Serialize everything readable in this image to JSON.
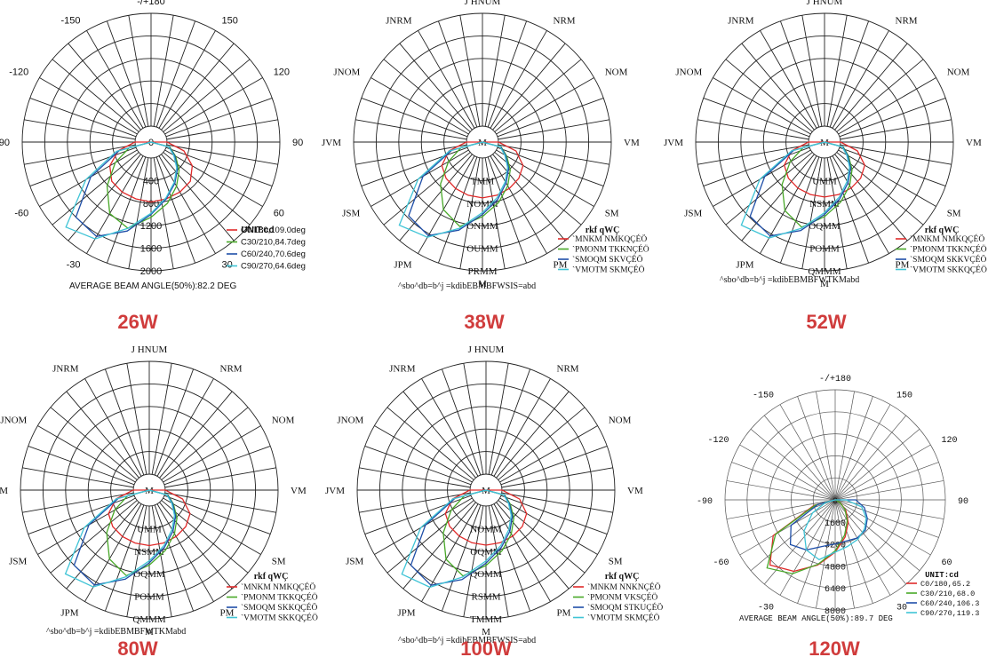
{
  "page": {
    "background": "#ffffff",
    "caption_color": "#d03c3c"
  },
  "chart_data": [
    {
      "id": "p26",
      "type": "polar",
      "caption": "26W",
      "font": "sans",
      "unit_label": "UNIT:cd",
      "footer": "AVERAGE BEAM ANGLE(50%):82.2 DEG",
      "angle_labels": [
        "-/+180",
        "150",
        "120",
        "90",
        "60",
        "30",
        "",
        "-30",
        "-60",
        "-90",
        "-120",
        "-150"
      ],
      "radial_labels": [
        "0",
        "400",
        "800",
        "1200",
        "1600",
        "2000"
      ],
      "rmax": 2000,
      "series": [
        {
          "name": "C0/180,109.0deg",
          "color": "#e02a2a",
          "values": [
            0,
            0,
            0,
            0,
            0,
            0,
            3,
            320,
            560,
            700,
            740,
            760,
            780,
            760,
            740,
            700,
            560,
            320,
            3,
            0,
            0,
            0,
            0,
            0,
            0
          ]
        },
        {
          "name": "C30/210,84.7deg",
          "color": "#48a828",
          "values": [
            0,
            0,
            0,
            0,
            0,
            0,
            0,
            60,
            220,
            420,
            620,
            840,
            1050,
            1300,
            1180,
            820,
            450,
            120,
            0,
            0,
            0,
            0,
            0,
            0,
            0
          ]
        },
        {
          "name": "C60/240,70.6deg",
          "color": "#1f4fa8",
          "values": [
            0,
            0,
            0,
            0,
            0,
            0,
            0,
            50,
            200,
            380,
            560,
            760,
            1000,
            1350,
            1650,
            1600,
            950,
            300,
            0,
            0,
            0,
            0,
            0,
            0,
            0
          ]
        },
        {
          "name": "C90/270,64.6deg",
          "color": "#3fc4d6",
          "values": [
            0,
            0,
            0,
            0,
            0,
            0,
            0,
            40,
            180,
            360,
            540,
            740,
            980,
            1300,
            1700,
            1850,
            1050,
            350,
            0,
            0,
            0,
            0,
            0,
            0,
            0
          ]
        }
      ]
    },
    {
      "id": "p38",
      "type": "polar",
      "caption": "38W",
      "font": "serif",
      "unit_label": "rkf qWÇ",
      "footer": "^sbo^db=b^j  =kdibEBMBFWSIS=abd",
      "angle_labels": [
        "J HNUM",
        "NRM",
        "NOM",
        "VM",
        "SM",
        "PM",
        "M",
        "JPM",
        "JSM",
        "JVM",
        "JNOM",
        "JNRM"
      ],
      "radial_labels": [
        "M",
        "TMM",
        "NOMM",
        "ONMM",
        "OUMM",
        "PRMM"
      ],
      "rmax": 3000,
      "series": [
        {
          "name": "`MNKM NMKQÇÉÖ",
          "color": "#e02a2a",
          "values": [
            0,
            0,
            0,
            0,
            0,
            0,
            5,
            500,
            820,
            940,
            1000,
            1040,
            1060,
            1040,
            1000,
            940,
            820,
            500,
            5,
            0,
            0,
            0,
            0,
            0,
            0
          ]
        },
        {
          "name": "`PMONM TKKNÇÉÖ",
          "color": "#48a828",
          "values": [
            0,
            0,
            0,
            0,
            0,
            0,
            0,
            90,
            320,
            620,
            920,
            1240,
            1560,
            1900,
            1650,
            1150,
            620,
            170,
            0,
            0,
            0,
            0,
            0,
            0,
            0
          ]
        },
        {
          "name": "`SMOQM SKVÇÉÖ",
          "color": "#1f4fa8",
          "values": [
            0,
            0,
            0,
            0,
            0,
            0,
            0,
            80,
            290,
            560,
            830,
            1150,
            1500,
            2000,
            2450,
            2350,
            1400,
            420,
            0,
            0,
            0,
            0,
            0,
            0,
            0
          ]
        },
        {
          "name": "`VMOTM SKMÇÉÖ",
          "color": "#3fc4d6",
          "values": [
            0,
            0,
            0,
            0,
            0,
            0,
            0,
            60,
            260,
            520,
            790,
            1100,
            1450,
            1950,
            2500,
            2700,
            1550,
            480,
            0,
            0,
            0,
            0,
            0,
            0,
            0
          ]
        }
      ]
    },
    {
      "id": "p52",
      "type": "polar",
      "caption": "52W",
      "font": "serif",
      "unit_label": "rkf qWÇ",
      "footer": "^sbo^db=b^j  =kdibEBMBFWTKMabd",
      "angle_labels": [
        "J HNUM",
        "NRM",
        "NOM",
        "VM",
        "SM",
        "PM",
        "M",
        "JPM",
        "JSM",
        "JVM",
        "JNOM",
        "JNRM"
      ],
      "radial_labels": [
        "M",
        "UMM",
        "NSMM",
        "OQMM",
        "POMM",
        "QMMM"
      ],
      "rmax": 5000,
      "series": [
        {
          "name": "`MNKM NMKQÇÉÖ",
          "color": "#e02a2a",
          "values": [
            0,
            0,
            0,
            0,
            0,
            0,
            8,
            800,
            1350,
            1560,
            1650,
            1700,
            1730,
            1700,
            1650,
            1560,
            1350,
            800,
            8,
            0,
            0,
            0,
            0,
            0,
            0
          ]
        },
        {
          "name": "`PMONM TKKNÇÉÖ",
          "color": "#48a828",
          "values": [
            0,
            0,
            0,
            0,
            0,
            0,
            0,
            150,
            520,
            1020,
            1520,
            2050,
            2600,
            3200,
            2800,
            1950,
            1050,
            280,
            0,
            0,
            0,
            0,
            0,
            0,
            0
          ]
        },
        {
          "name": "`SMOQM SKKVÇÉÖ",
          "color": "#1f4fa8",
          "values": [
            0,
            0,
            0,
            0,
            0,
            0,
            0,
            130,
            480,
            930,
            1380,
            1900,
            2500,
            3350,
            4100,
            3950,
            2350,
            700,
            0,
            0,
            0,
            0,
            0,
            0,
            0
          ]
        },
        {
          "name": "`VMOTM SKKQÇÉÖ",
          "color": "#3fc4d6",
          "values": [
            0,
            0,
            0,
            0,
            0,
            0,
            0,
            100,
            430,
            860,
            1300,
            1820,
            2420,
            3250,
            4200,
            4500,
            2600,
            800,
            0,
            0,
            0,
            0,
            0,
            0,
            0
          ]
        }
      ]
    },
    {
      "id": "p80",
      "type": "polar",
      "caption": "80W",
      "font": "serif",
      "unit_label": "rkf qWÇ",
      "footer": "^sbo^db=b^j  =kdibEBMBFWTKMabd",
      "angle_labels": [
        "J HNUM",
        "NRM",
        "NOM",
        "VM",
        "SM",
        "PM",
        "M",
        "JPM",
        "JSM",
        "JVM",
        "JNOM",
        "JNRM"
      ],
      "radial_labels": [
        "M",
        "UMM",
        "NSMM",
        "OQMM",
        "POMM",
        "QMMM"
      ],
      "rmax": 5000,
      "series": [
        {
          "name": "`MNKM NMKQÇÉÖ",
          "color": "#e02a2a",
          "values": [
            0,
            0,
            0,
            0,
            0,
            0,
            8,
            820,
            1380,
            1580,
            1670,
            1720,
            1750,
            1720,
            1670,
            1580,
            1380,
            820,
            8,
            0,
            0,
            0,
            0,
            0,
            0
          ]
        },
        {
          "name": "`PMONM TKKQÇÉÖ",
          "color": "#48a828",
          "values": [
            0,
            0,
            0,
            0,
            0,
            0,
            0,
            150,
            530,
            1030,
            1530,
            2060,
            2620,
            3220,
            2820,
            1960,
            1060,
            290,
            0,
            0,
            0,
            0,
            0,
            0,
            0
          ]
        },
        {
          "name": "`SMOQM SKKQÇÉÖ",
          "color": "#1f4fa8",
          "values": [
            0,
            0,
            0,
            0,
            0,
            0,
            0,
            130,
            490,
            940,
            1390,
            1910,
            2520,
            3380,
            4150,
            4000,
            2380,
            710,
            0,
            0,
            0,
            0,
            0,
            0,
            0
          ]
        },
        {
          "name": "`VMOTM SKKQÇÉÖ",
          "color": "#3fc4d6",
          "values": [
            0,
            0,
            0,
            0,
            0,
            0,
            0,
            100,
            440,
            870,
            1310,
            1830,
            2430,
            3270,
            4250,
            4550,
            2620,
            810,
            0,
            0,
            0,
            0,
            0,
            0,
            0
          ]
        }
      ]
    },
    {
      "id": "p100",
      "type": "polar",
      "caption": "100W",
      "font": "serif",
      "unit_label": "rkf qWÇ",
      "footer": "^sbo^db=b^j  =kdibEBMBFWSIS=abd",
      "angle_labels": [
        "J HNUM",
        "NRM",
        "NOM",
        "VM",
        "SM",
        "PM",
        "M",
        "JPM",
        "JSM",
        "JVM",
        "JNOM",
        "JNRM"
      ],
      "radial_labels": [
        "M",
        "NOMM",
        "OQMM",
        "QOMM",
        "RSMM",
        "TMMM"
      ],
      "rmax": 7500,
      "series": [
        {
          "name": "`MNKM NNKNÇÉÖ",
          "color": "#e02a2a",
          "values": [
            0,
            0,
            0,
            0,
            0,
            0,
            12,
            1250,
            2050,
            2350,
            2480,
            2560,
            2600,
            2560,
            2480,
            2350,
            2050,
            1250,
            12,
            0,
            0,
            0,
            0,
            0,
            0
          ]
        },
        {
          "name": "`PMONM VKSÇÉÖ",
          "color": "#48a828",
          "values": [
            0,
            0,
            0,
            0,
            0,
            0,
            0,
            230,
            800,
            1550,
            2300,
            3100,
            3950,
            4850,
            4250,
            2950,
            1600,
            430,
            0,
            0,
            0,
            0,
            0,
            0,
            0
          ]
        },
        {
          "name": "`SMOQM STKUÇÉÖ",
          "color": "#1f4fa8",
          "values": [
            0,
            0,
            0,
            0,
            0,
            0,
            0,
            200,
            730,
            1420,
            2100,
            2880,
            3800,
            5100,
            6250,
            6000,
            3580,
            1070,
            0,
            0,
            0,
            0,
            0,
            0,
            0
          ]
        },
        {
          "name": "`VMOTM SKMÇÉÖ",
          "color": "#3fc4d6",
          "values": [
            0,
            0,
            0,
            0,
            0,
            0,
            0,
            150,
            660,
            1310,
            1970,
            2750,
            3650,
            4920,
            6400,
            6850,
            3950,
            1220,
            0,
            0,
            0,
            0,
            0,
            0,
            0
          ]
        }
      ]
    },
    {
      "id": "p120",
      "type": "polar",
      "caption": "120W",
      "font": "mono",
      "unit_label": "UNIT:cd",
      "footer": "AVERAGE BEAM ANGLE(50%):89.7 DEG",
      "angle_labels": [
        "-/+180",
        "150",
        "120",
        "90",
        "60",
        "30",
        "",
        "-30",
        "-60",
        "-90",
        "-120",
        "-150"
      ],
      "radial_labels": [
        "0",
        "1600",
        "3200",
        "4800",
        "6400",
        "8000"
      ],
      "rmax": 8000,
      "series": [
        {
          "name": "C0/180,65.2",
          "color": "#e02a2a",
          "values": [
            0,
            0,
            0,
            0,
            0,
            0,
            0,
            100,
            450,
            1100,
            1900,
            2800,
            3800,
            4900,
            6000,
            6700,
            5200,
            1600,
            0,
            0,
            0,
            0,
            0,
            0,
            0
          ]
        },
        {
          "name": "C30/210,68.0",
          "color": "#48a828",
          "values": [
            0,
            0,
            0,
            0,
            0,
            0,
            0,
            90,
            420,
            1000,
            1750,
            2650,
            3700,
            4850,
            6200,
            7000,
            5000,
            1500,
            0,
            0,
            0,
            0,
            0,
            0,
            0
          ]
        },
        {
          "name": "C60/240,106.3",
          "color": "#1f4fa8",
          "values": [
            0,
            0,
            0,
            0,
            0,
            0,
            1500,
            2200,
            2700,
            3100,
            3200,
            3100,
            3200,
            3500,
            4200,
            4600,
            3700,
            1300,
            0,
            0,
            0,
            0,
            0,
            0,
            0
          ]
        },
        {
          "name": "C90/270,119.3",
          "color": "#3fc4d6",
          "values": [
            0,
            0,
            0,
            0,
            0,
            0,
            800,
            2000,
            2600,
            3000,
            3300,
            3500,
            3800,
            4500,
            4200,
            3200,
            1900,
            700,
            0,
            0,
            0,
            0,
            0,
            0,
            0
          ]
        }
      ]
    }
  ]
}
